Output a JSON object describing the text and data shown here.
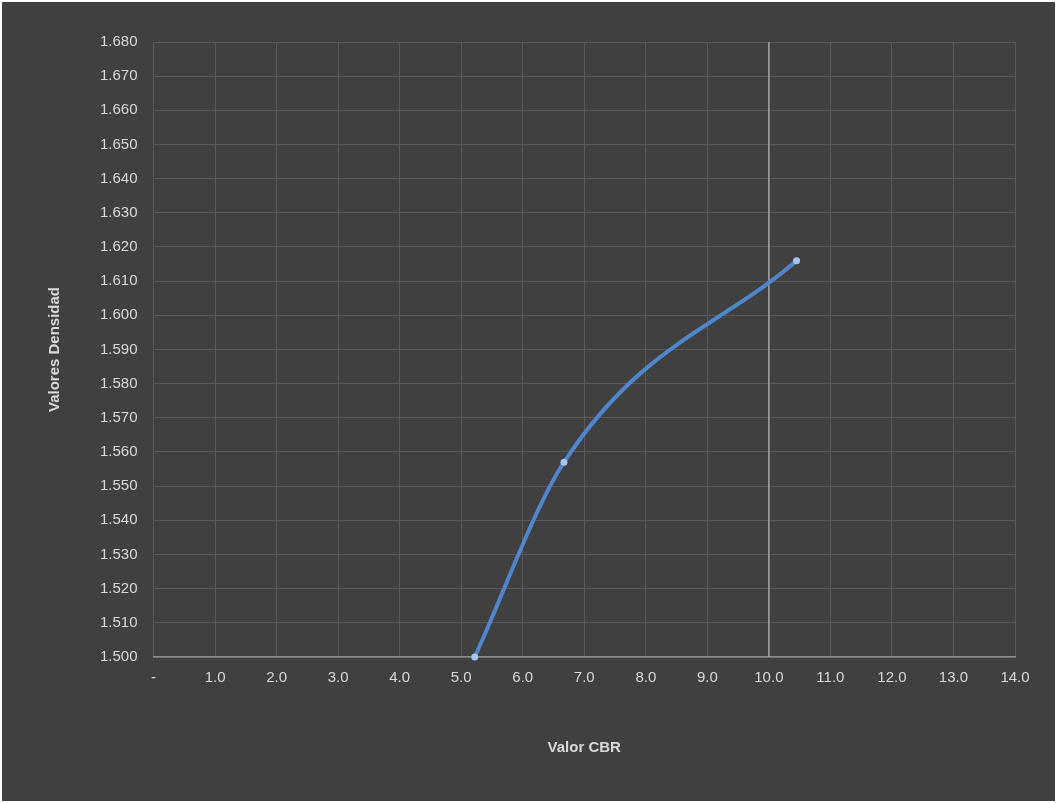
{
  "chart_data": {
    "type": "line",
    "xlabel": "Valor CBR",
    "ylabel": "Valores Densidad",
    "x": [
      5.22,
      6.67,
      10.45
    ],
    "series": [
      {
        "color": "#4f86cc",
        "values": [
          1.5,
          1.557,
          1.616
        ]
      }
    ],
    "xlim": [
      0,
      14
    ],
    "xticks": [
      {
        "value": 0,
        "label": "-"
      },
      {
        "value": 1,
        "label": "1.0"
      },
      {
        "value": 2,
        "label": "2.0"
      },
      {
        "value": 3,
        "label": "3.0"
      },
      {
        "value": 4,
        "label": "4.0"
      },
      {
        "value": 5,
        "label": "5.0"
      },
      {
        "value": 6,
        "label": "6.0"
      },
      {
        "value": 7,
        "label": "7.0"
      },
      {
        "value": 8,
        "label": "8.0"
      },
      {
        "value": 9,
        "label": "9.0"
      },
      {
        "value": 10,
        "label": "10.0"
      },
      {
        "value": 11,
        "label": "11.0"
      },
      {
        "value": 12,
        "label": "12.0"
      },
      {
        "value": 13,
        "label": "13.0"
      },
      {
        "value": 14,
        "label": "14.0"
      }
    ],
    "ylim": [
      1.5,
      1.68
    ],
    "yticks": [
      {
        "value": 1.5,
        "label": "1.500"
      },
      {
        "value": 1.51,
        "label": "1.510"
      },
      {
        "value": 1.52,
        "label": "1.520"
      },
      {
        "value": 1.53,
        "label": "1.530"
      },
      {
        "value": 1.54,
        "label": "1.540"
      },
      {
        "value": 1.55,
        "label": "1.550"
      },
      {
        "value": 1.56,
        "label": "1.560"
      },
      {
        "value": 1.57,
        "label": "1.570"
      },
      {
        "value": 1.58,
        "label": "1.580"
      },
      {
        "value": 1.59,
        "label": "1.590"
      },
      {
        "value": 1.6,
        "label": "1.600"
      },
      {
        "value": 1.61,
        "label": "1.610"
      },
      {
        "value": 1.62,
        "label": "1.620"
      },
      {
        "value": 1.63,
        "label": "1.630"
      },
      {
        "value": 1.64,
        "label": "1.640"
      },
      {
        "value": 1.65,
        "label": "1.650"
      },
      {
        "value": 1.66,
        "label": "1.660"
      },
      {
        "value": 1.67,
        "label": "1.670"
      },
      {
        "value": 1.68,
        "label": "1.680"
      }
    ],
    "ref_lines": [
      {
        "axis": "x",
        "value": 10,
        "color": "#a6a6a6"
      }
    ],
    "grid": true,
    "legend": false,
    "marker": "circle",
    "line_style": "solid"
  }
}
